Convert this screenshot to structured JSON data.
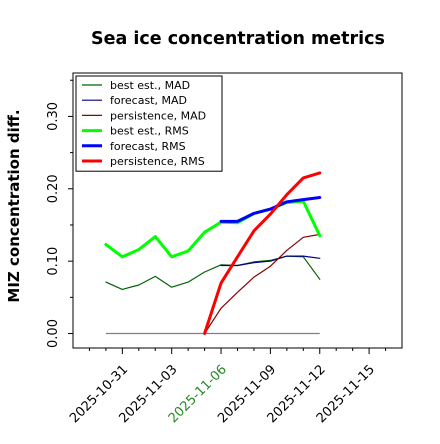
{
  "chart_data": {
    "type": "line",
    "title": "Sea ice concentration metrics",
    "ylabel": "MIZ concentration diff.",
    "xlabel": "",
    "ylim": [
      -0.02,
      0.36
    ],
    "yticks": [
      0.0,
      0.1,
      0.2,
      0.3
    ],
    "ytick_labels": [
      "0.00",
      "0.10",
      "0.20",
      "0.30"
    ],
    "x_axis": {
      "unit": "date",
      "range": [
        "2025-10-28",
        "2025-11-17"
      ],
      "ticks": [
        "2025-10-31",
        "2025-11-03",
        "2025-11-06",
        "2025-11-09",
        "2025-11-12",
        "2025-11-15"
      ],
      "tick_labels": [
        "2025-10-31",
        "2025-11-03",
        "2025-11-06",
        "2025-11-09",
        "2025-11-12",
        "2025-11-15"
      ],
      "highlighted_tick": "2025-11-06",
      "highlight_color": "#228b22"
    },
    "grid": false,
    "legend_position": "top-left",
    "zero_line": {
      "x": [
        "2025-10-30",
        "2025-11-12"
      ],
      "value": 0.0,
      "color": "#808080"
    },
    "series": [
      {
        "name": "best est., MAD",
        "color": "#006400",
        "line_width": 1.2,
        "x": [
          "2025-10-30",
          "2025-10-31",
          "2025-11-01",
          "2025-11-02",
          "2025-11-03",
          "2025-11-04",
          "2025-11-05",
          "2025-11-06",
          "2025-11-07",
          "2025-11-08",
          "2025-11-09",
          "2025-11-10",
          "2025-11-11",
          "2025-11-12"
        ],
        "values": [
          0.071,
          0.061,
          0.067,
          0.079,
          0.064,
          0.071,
          0.085,
          0.095,
          0.094,
          0.099,
          0.101,
          0.107,
          0.106,
          0.075
        ]
      },
      {
        "name": "forecast,  MAD",
        "color": "#00008b",
        "line_width": 1.2,
        "x": [
          "2025-11-06",
          "2025-11-07",
          "2025-11-08",
          "2025-11-09",
          "2025-11-10",
          "2025-11-11",
          "2025-11-12"
        ],
        "values": [
          0.094,
          0.094,
          0.098,
          0.1,
          0.107,
          0.107,
          0.104
        ]
      },
      {
        "name": "persistence, MAD",
        "color": "#8b0000",
        "line_width": 1.2,
        "x": [
          "2025-11-05",
          "2025-11-06",
          "2025-11-07",
          "2025-11-08",
          "2025-11-09",
          "2025-11-10",
          "2025-11-11",
          "2025-11-12"
        ],
        "values": [
          0.0,
          0.035,
          0.057,
          0.078,
          0.093,
          0.115,
          0.133,
          0.137
        ]
      },
      {
        "name": "best est., RMS",
        "color": "#00ff00",
        "line_width": 3,
        "x": [
          "2025-10-30",
          "2025-10-31",
          "2025-11-01",
          "2025-11-02",
          "2025-11-03",
          "2025-11-04",
          "2025-11-05",
          "2025-11-06",
          "2025-11-07",
          "2025-11-08",
          "2025-11-09",
          "2025-11-10",
          "2025-11-11",
          "2025-11-12"
        ],
        "values": [
          0.123,
          0.106,
          0.116,
          0.134,
          0.106,
          0.114,
          0.14,
          0.154,
          0.153,
          0.166,
          0.172,
          0.181,
          0.183,
          0.135
        ]
      },
      {
        "name": "forecast,  RMS",
        "color": "#0000ff",
        "line_width": 3,
        "x": [
          "2025-11-06",
          "2025-11-07",
          "2025-11-08",
          "2025-11-09",
          "2025-11-10",
          "2025-11-11",
          "2025-11-12"
        ],
        "values": [
          0.155,
          0.155,
          0.166,
          0.172,
          0.182,
          0.185,
          0.188
        ]
      },
      {
        "name": "persistence, RMS",
        "color": "#ff0000",
        "line_width": 3,
        "x": [
          "2025-11-05",
          "2025-11-06",
          "2025-11-07",
          "2025-11-08",
          "2025-11-09",
          "2025-11-10",
          "2025-11-11",
          "2025-11-12"
        ],
        "values": [
          0.0,
          0.07,
          0.106,
          0.142,
          0.165,
          0.192,
          0.215,
          0.222
        ]
      }
    ]
  }
}
